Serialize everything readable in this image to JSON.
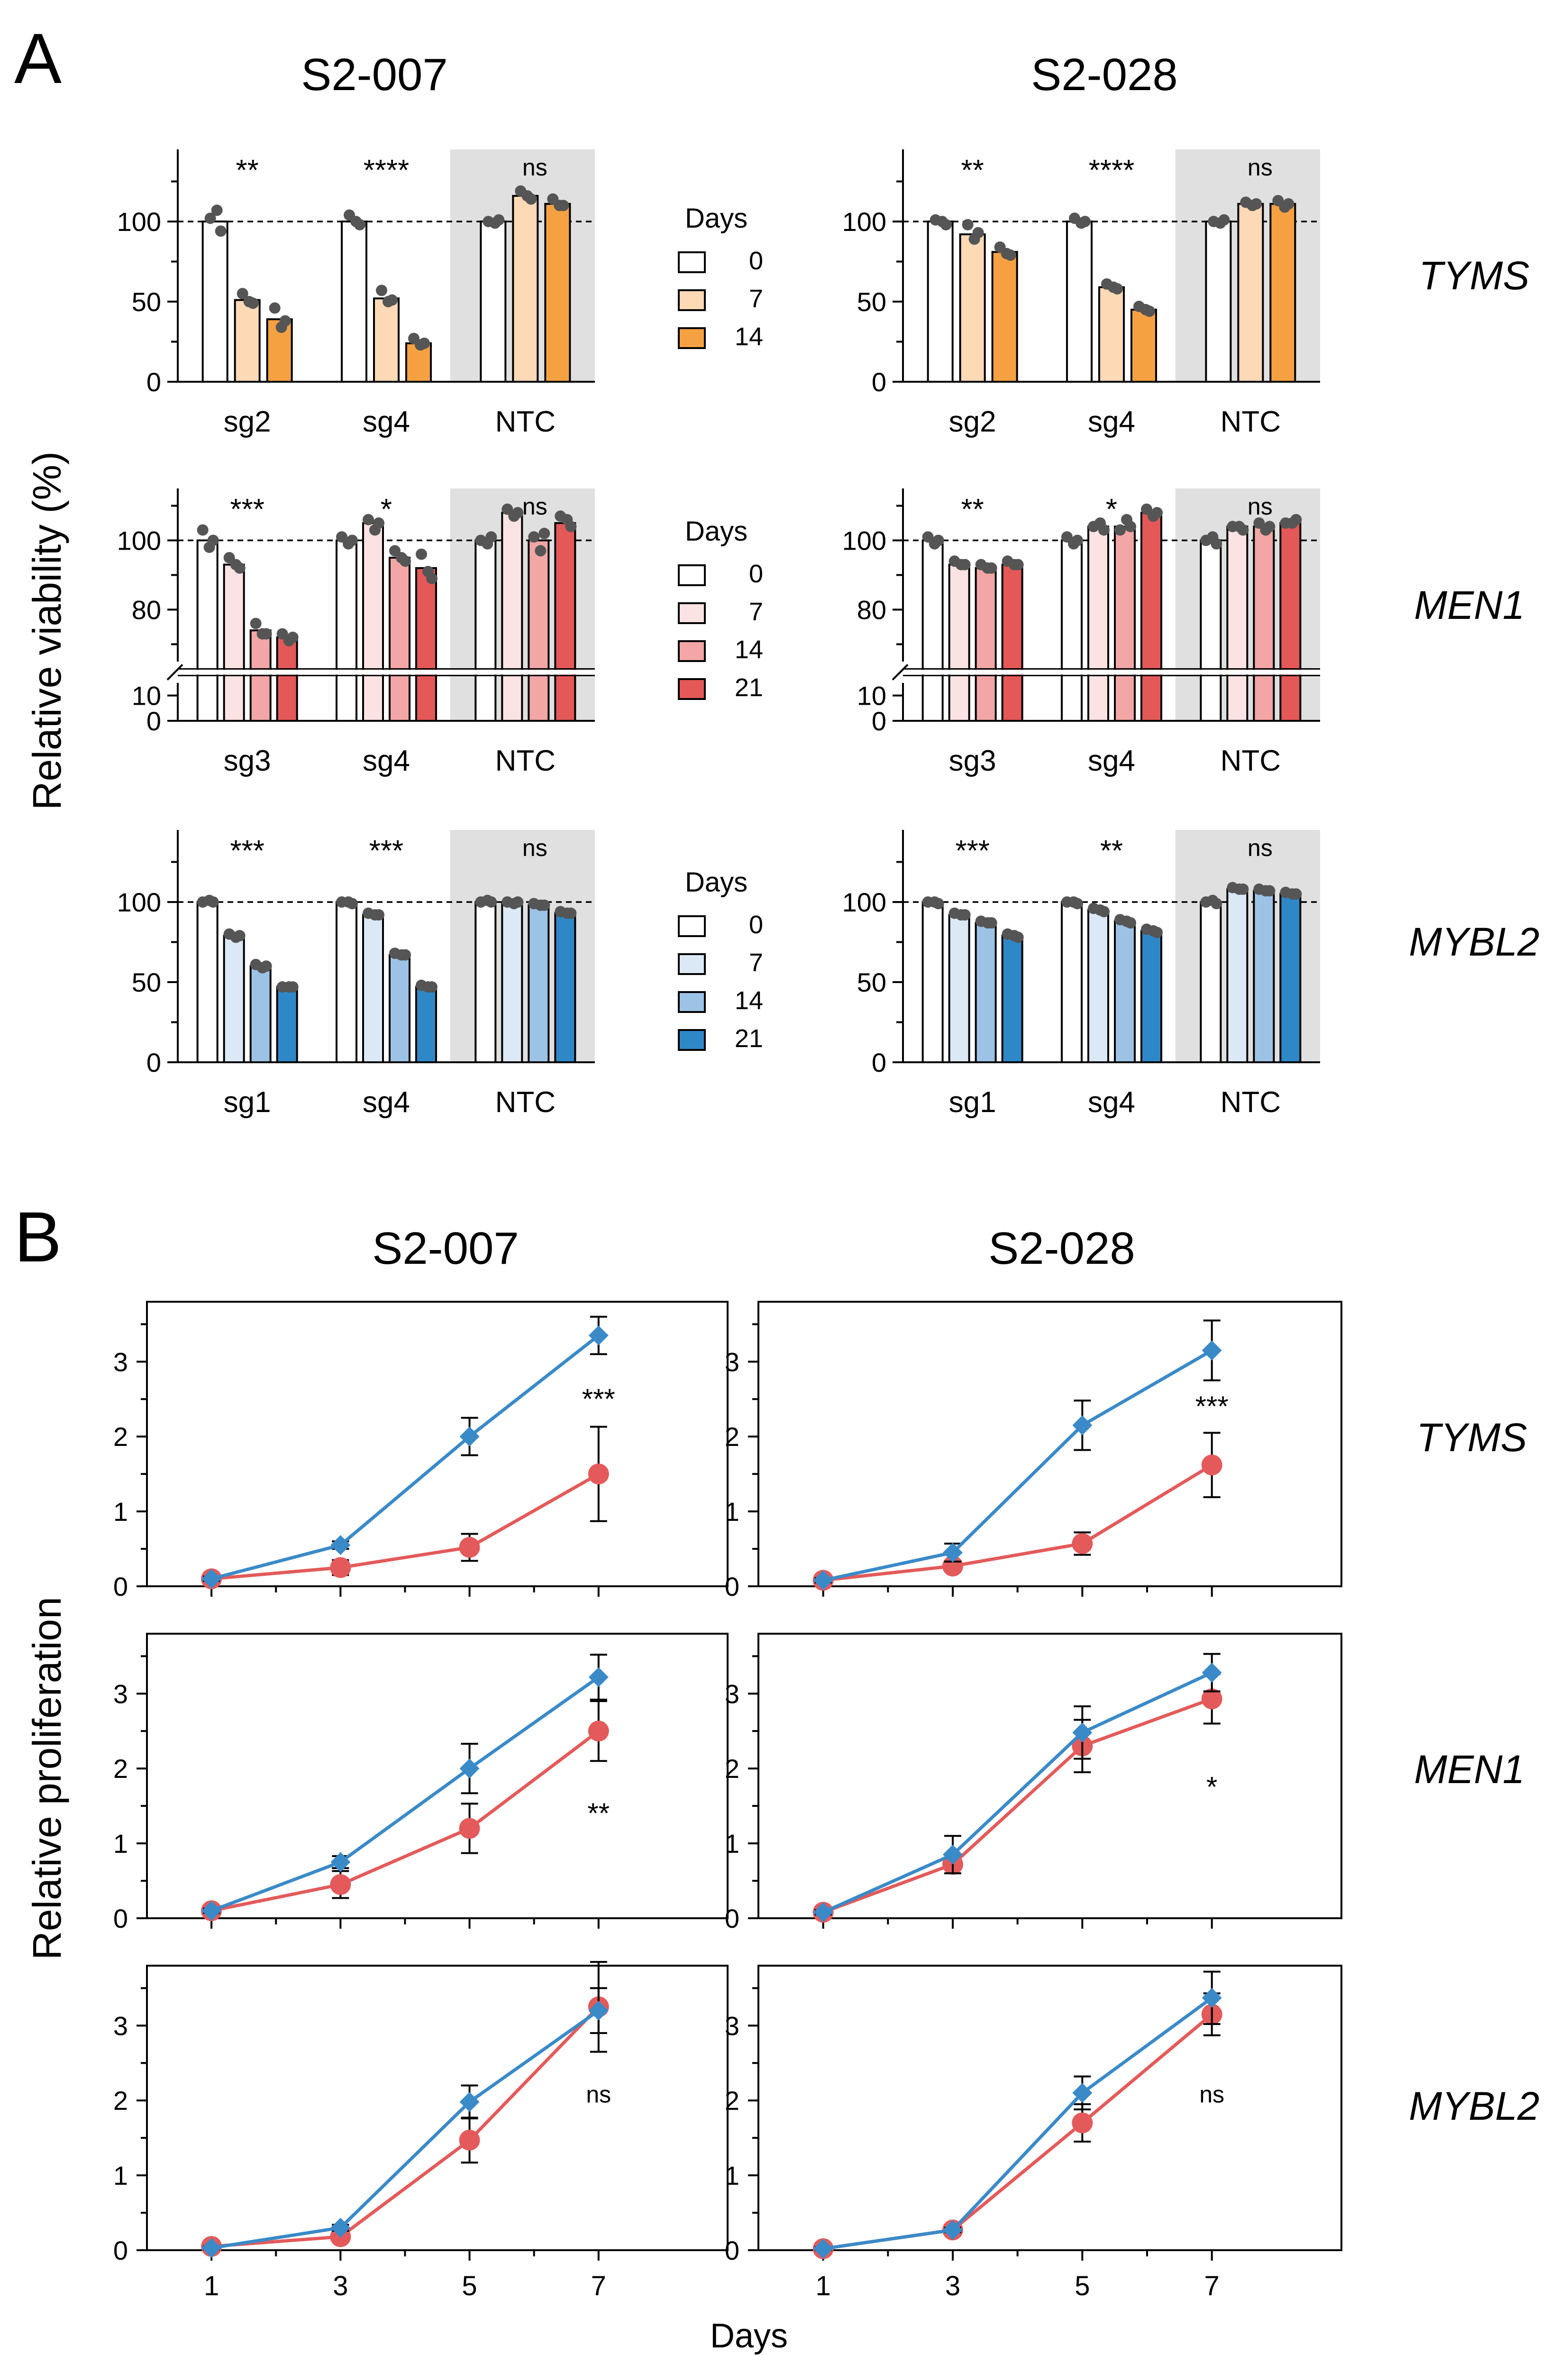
{
  "panels": [
    {
      "label": "A"
    },
    {
      "label": "B"
    }
  ],
  "panel_a": {
    "ylabel": "Relative viability  (%)",
    "legend_title": "Days",
    "columns": [
      "S2-007",
      "S2-028"
    ],
    "x_groups_label_ntc": "NTC"
  },
  "panel_b": {
    "ylabel": "Relative proliferation",
    "xlabel": "Days",
    "columns": [
      "S2-007",
      "S2-028"
    ]
  },
  "genes": [
    "TYMS",
    "MEN1",
    "MYBL2"
  ],
  "colors": {
    "tyms": [
      "#ffffff",
      "#fdd9b5",
      "#f5a142"
    ],
    "men1": [
      "#ffffff",
      "#fbe3e3",
      "#f2a6a6",
      "#e45858"
    ],
    "mybl2": [
      "#ffffff",
      "#dbe8f6",
      "#9cc3e6",
      "#2e88c8"
    ],
    "ntc_background": "#e0e0e0",
    "line_blue": "#3a8ac8",
    "line_red": "#e45a5a",
    "dot": "#555555"
  },
  "chart_data": [
    {
      "type": "bar",
      "id": "A-TYMS-S2-007",
      "column": "S2-007",
      "gene": "TYMS",
      "legend_title": "Days",
      "days": [
        "0",
        "7",
        "14"
      ],
      "groups": [
        "sg2",
        "sg4",
        "NTC"
      ],
      "values": [
        [
          100,
          51,
          39
        ],
        [
          100,
          52,
          24
        ],
        [
          100,
          116,
          111
        ]
      ],
      "points": [
        [
          [
            102,
            107,
            94
          ],
          [
            55,
            50,
            49
          ],
          [
            46,
            34,
            38
          ]
        ],
        [
          [
            104,
            100,
            98
          ],
          [
            57,
            50,
            51
          ],
          [
            27,
            23,
            24
          ]
        ],
        [
          [
            100,
            99,
            101
          ],
          [
            119,
            116,
            114
          ],
          [
            114,
            110,
            110
          ]
        ]
      ],
      "significance": [
        "**",
        "****",
        "ns"
      ],
      "ylim": [
        0,
        145
      ],
      "yticks": [
        0,
        50,
        100
      ],
      "reference_line": 100
    },
    {
      "type": "bar",
      "id": "A-TYMS-S2-028",
      "column": "S2-028",
      "gene": "TYMS",
      "legend_title": "Days",
      "days": [
        "0",
        "7",
        "14"
      ],
      "groups": [
        "sg2",
        "sg4",
        "NTC"
      ],
      "values": [
        [
          100,
          92,
          81
        ],
        [
          100,
          59,
          45
        ],
        [
          100,
          111,
          111
        ]
      ],
      "points": [
        [
          [
            101,
            100,
            98
          ],
          [
            98,
            89,
            93
          ],
          [
            84,
            80,
            79
          ]
        ],
        [
          [
            102,
            99,
            100
          ],
          [
            61,
            59,
            58
          ],
          [
            47,
            45,
            44
          ]
        ],
        [
          [
            100,
            99,
            101
          ],
          [
            112,
            110,
            111
          ],
          [
            113,
            109,
            111
          ]
        ]
      ],
      "significance": [
        "**",
        "****",
        "ns"
      ],
      "ylim": [
        0,
        145
      ],
      "yticks": [
        0,
        50,
        100
      ],
      "reference_line": 100
    },
    {
      "type": "bar",
      "id": "A-MEN1-S2-007",
      "column": "S2-007",
      "gene": "MEN1",
      "legend_title": "Days",
      "days": [
        "0",
        "7",
        "14",
        "21"
      ],
      "groups": [
        "sg3",
        "sg4",
        "NTC"
      ],
      "values": [
        [
          100,
          93,
          74,
          72
        ],
        [
          100,
          105,
          95,
          92
        ],
        [
          100,
          108,
          100,
          105
        ]
      ],
      "points": [
        [
          [
            103,
            98,
            100
          ],
          [
            95,
            93,
            92
          ],
          [
            76,
            73,
            73
          ],
          [
            73,
            71,
            72
          ]
        ],
        [
          [
            101,
            99,
            100
          ],
          [
            106,
            103,
            105
          ],
          [
            97,
            95,
            94
          ],
          [
            96,
            91,
            89
          ]
        ],
        [
          [
            100,
            99,
            101
          ],
          [
            109,
            107,
            108
          ],
          [
            101,
            97,
            102
          ],
          [
            107,
            106,
            104
          ]
        ]
      ],
      "significance": [
        "***",
        "*",
        "ns"
      ],
      "ylim_break": {
        "lower": [
          0,
          15
        ],
        "upper": [
          65,
          115
        ]
      },
      "yticks": [
        0,
        10,
        80,
        100
      ],
      "reference_line": 100
    },
    {
      "type": "bar",
      "id": "A-MEN1-S2-028",
      "column": "S2-028",
      "gene": "MEN1",
      "legend_title": "Days",
      "days": [
        "0",
        "7",
        "14",
        "21"
      ],
      "groups": [
        "sg3",
        "sg4",
        "NTC"
      ],
      "values": [
        [
          100,
          93,
          92,
          93
        ],
        [
          100,
          104,
          104,
          108
        ],
        [
          100,
          104,
          104,
          105
        ]
      ],
      "points": [
        [
          [
            101,
            99,
            100
          ],
          [
            94,
            93,
            93
          ],
          [
            93,
            92,
            92
          ],
          [
            94,
            93,
            93
          ]
        ],
        [
          [
            101,
            99,
            100
          ],
          [
            104,
            105,
            103
          ],
          [
            103,
            106,
            104
          ],
          [
            109,
            107,
            108
          ]
        ],
        [
          [
            100,
            101,
            99
          ],
          [
            104,
            104,
            103
          ],
          [
            105,
            103,
            104
          ],
          [
            105,
            105,
            106
          ]
        ]
      ],
      "significance": [
        "**",
        "*",
        "ns"
      ],
      "ylim_break": {
        "lower": [
          0,
          15
        ],
        "upper": [
          65,
          115
        ]
      },
      "yticks": [
        0,
        10,
        80,
        100
      ],
      "reference_line": 100
    },
    {
      "type": "bar",
      "id": "A-MYBL2-S2-007",
      "column": "S2-007",
      "gene": "MYBL2",
      "legend_title": "Days",
      "days": [
        "0",
        "7",
        "14",
        "21"
      ],
      "groups": [
        "sg1",
        "sg4",
        "NTC"
      ],
      "values": [
        [
          100,
          79,
          60,
          47
        ],
        [
          100,
          92,
          67,
          47
        ],
        [
          100,
          100,
          98,
          93
        ]
      ],
      "points": [
        [
          [
            100,
            101,
            100
          ],
          [
            80,
            78,
            79
          ],
          [
            61,
            59,
            60
          ],
          [
            47,
            47,
            47
          ]
        ],
        [
          [
            100,
            100,
            99
          ],
          [
            93,
            92,
            92
          ],
          [
            68,
            67,
            67
          ],
          [
            48,
            47,
            47
          ]
        ],
        [
          [
            100,
            101,
            100
          ],
          [
            100,
            99,
            100
          ],
          [
            99,
            98,
            98
          ],
          [
            94,
            93,
            93
          ]
        ]
      ],
      "significance": [
        "***",
        "***",
        "ns"
      ],
      "ylim": [
        0,
        145
      ],
      "yticks": [
        0,
        50,
        100
      ],
      "reference_line": 100
    },
    {
      "type": "bar",
      "id": "A-MYBL2-S2-028",
      "column": "S2-028",
      "gene": "MYBL2",
      "legend_title": "Days",
      "days": [
        "0",
        "7",
        "14",
        "21"
      ],
      "groups": [
        "sg1",
        "sg4",
        "NTC"
      ],
      "values": [
        [
          100,
          92,
          87,
          79
        ],
        [
          100,
          95,
          88,
          82
        ],
        [
          100,
          108,
          107,
          105
        ]
      ],
      "points": [
        [
          [
            100,
            100,
            99
          ],
          [
            93,
            92,
            92
          ],
          [
            88,
            87,
            87
          ],
          [
            80,
            79,
            78
          ]
        ],
        [
          [
            100,
            100,
            99
          ],
          [
            96,
            95,
            94
          ],
          [
            89,
            88,
            87
          ],
          [
            83,
            82,
            81
          ]
        ],
        [
          [
            100,
            101,
            99
          ],
          [
            109,
            108,
            108
          ],
          [
            108,
            107,
            107
          ],
          [
            106,
            105,
            105
          ]
        ]
      ],
      "significance": [
        "***",
        "**",
        "ns"
      ],
      "ylim": [
        0,
        145
      ],
      "yticks": [
        0,
        50,
        100
      ],
      "reference_line": 100
    },
    {
      "type": "line",
      "id": "B-TYMS-S2-007",
      "column": "S2-007",
      "gene": "TYMS",
      "x": [
        1,
        3,
        5,
        7
      ],
      "xlim": [
        0,
        9
      ],
      "ylim": [
        0,
        3.8
      ],
      "yticks": [
        0,
        1,
        2,
        3
      ],
      "series": [
        {
          "name": "blue",
          "marker": "diamond",
          "values": [
            0.1,
            0.55,
            2.0,
            3.35
          ],
          "errors": [
            0.03,
            0.05,
            0.25,
            0.25
          ]
        },
        {
          "name": "red",
          "marker": "circle",
          "values": [
            0.1,
            0.25,
            0.52,
            1.5
          ],
          "errors": [
            0.03,
            0.1,
            0.18,
            0.63
          ]
        }
      ],
      "significance": {
        "label": "***",
        "x": 7,
        "y": 2.5
      }
    },
    {
      "type": "line",
      "id": "B-TYMS-S2-028",
      "column": "S2-028",
      "gene": "TYMS",
      "x": [
        1,
        3,
        5,
        7
      ],
      "xlim": [
        0,
        9
      ],
      "ylim": [
        0,
        3.8
      ],
      "yticks": [
        0,
        1,
        2,
        3
      ],
      "series": [
        {
          "name": "blue",
          "marker": "diamond",
          "values": [
            0.08,
            0.45,
            2.15,
            3.15
          ],
          "errors": [
            0.03,
            0.12,
            0.33,
            0.4
          ]
        },
        {
          "name": "red",
          "marker": "circle",
          "values": [
            0.08,
            0.27,
            0.57,
            1.62
          ],
          "errors": [
            0.03,
            0.05,
            0.15,
            0.43
          ]
        }
      ],
      "significance": {
        "label": "***",
        "x": 7,
        "y": 2.4
      }
    },
    {
      "type": "line",
      "id": "B-MEN1-S2-007",
      "column": "S2-007",
      "gene": "MEN1",
      "x": [
        1,
        3,
        5,
        7
      ],
      "xlim": [
        0,
        9
      ],
      "ylim": [
        0,
        3.8
      ],
      "yticks": [
        0,
        1,
        2,
        3
      ],
      "series": [
        {
          "name": "blue",
          "marker": "diamond",
          "values": [
            0.1,
            0.75,
            2.0,
            3.22
          ],
          "errors": [
            0.03,
            0.08,
            0.33,
            0.3
          ]
        },
        {
          "name": "red",
          "marker": "circle",
          "values": [
            0.1,
            0.45,
            1.2,
            2.5
          ],
          "errors": [
            0.03,
            0.18,
            0.33,
            0.4
          ]
        }
      ],
      "significance": {
        "label": "**",
        "x": 7,
        "y": 1.4
      }
    },
    {
      "type": "line",
      "id": "B-MEN1-S2-028",
      "column": "S2-028",
      "gene": "MEN1",
      "x": [
        1,
        3,
        5,
        7
      ],
      "xlim": [
        0,
        9
      ],
      "ylim": [
        0,
        3.8
      ],
      "yticks": [
        0,
        1,
        2,
        3
      ],
      "series": [
        {
          "name": "blue",
          "marker": "diamond",
          "values": [
            0.08,
            0.85,
            2.48,
            3.28
          ],
          "errors": [
            0.03,
            0.25,
            0.35,
            0.25
          ]
        },
        {
          "name": "red",
          "marker": "circle",
          "values": [
            0.08,
            0.72,
            2.3,
            2.93
          ],
          "errors": [
            0.03,
            0.05,
            0.35,
            0.33
          ]
        }
      ],
      "significance": {
        "label": "*",
        "x": 7,
        "y": 1.75
      }
    },
    {
      "type": "line",
      "id": "B-MYBL2-S2-007",
      "column": "S2-007",
      "gene": "MYBL2",
      "x": [
        1,
        3,
        5,
        7
      ],
      "xlim": [
        0,
        9
      ],
      "ylim": [
        0,
        3.8
      ],
      "yticks": [
        0,
        1,
        2,
        3
      ],
      "series": [
        {
          "name": "blue",
          "marker": "diamond",
          "values": [
            0.03,
            0.3,
            1.98,
            3.2
          ],
          "errors": [
            0.02,
            0.04,
            0.22,
            0.3
          ]
        },
        {
          "name": "red",
          "marker": "circle",
          "values": [
            0.05,
            0.18,
            1.47,
            3.25
          ],
          "errors": [
            0.02,
            0.04,
            0.3,
            0.6
          ]
        }
      ],
      "significance": {
        "label": "ns",
        "x": 7,
        "y": 2.1
      }
    },
    {
      "type": "line",
      "id": "B-MYBL2-S2-028",
      "column": "S2-028",
      "gene": "MYBL2",
      "x": [
        1,
        3,
        5,
        7
      ],
      "xlim": [
        0,
        9
      ],
      "ylim": [
        0,
        3.8
      ],
      "yticks": [
        0,
        1,
        2,
        3
      ],
      "series": [
        {
          "name": "blue",
          "marker": "diamond",
          "values": [
            0.02,
            0.27,
            2.1,
            3.37
          ],
          "errors": [
            0.02,
            0.03,
            0.22,
            0.35
          ]
        },
        {
          "name": "red",
          "marker": "circle",
          "values": [
            0.02,
            0.27,
            1.7,
            3.15
          ],
          "errors": [
            0.02,
            0.03,
            0.25,
            0.28
          ]
        }
      ],
      "significance": {
        "label": "ns",
        "x": 7,
        "y": 2.1
      }
    }
  ]
}
